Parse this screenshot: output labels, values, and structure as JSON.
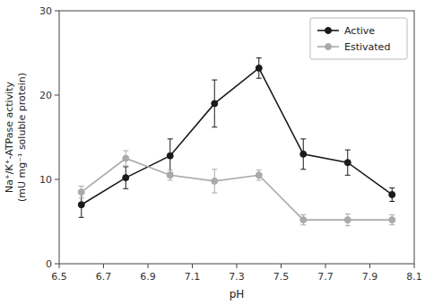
{
  "chart_data": {
    "type": "line",
    "xlabel": "pH",
    "ylabel": "Na⁺/K⁺-ATPase activity\n(mU mg⁻¹ soluble protein)",
    "x": [
      6.6,
      6.8,
      7.0,
      7.2,
      7.4,
      7.6,
      7.8,
      8.0
    ],
    "series": [
      {
        "name": "Active",
        "color": "#1a1a1a",
        "marker": "circle",
        "values": [
          7.0,
          10.2,
          12.8,
          19.0,
          23.2,
          13.0,
          12.0,
          8.2
        ],
        "errors": [
          1.5,
          1.3,
          2.0,
          2.8,
          1.2,
          1.8,
          1.5,
          0.8
        ]
      },
      {
        "name": "Estivated",
        "color": "#aaaaaa",
        "marker": "circle",
        "values": [
          8.5,
          12.5,
          10.5,
          9.8,
          10.5,
          5.2,
          5.2,
          5.2
        ],
        "errors": [
          0.7,
          0.9,
          0.6,
          1.4,
          0.6,
          0.6,
          0.7,
          0.6
        ]
      }
    ],
    "xlim": [
      6.5,
      8.1
    ],
    "ylim": [
      0,
      30
    ],
    "xticks": [
      6.5,
      6.7,
      6.9,
      7.1,
      7.3,
      7.5,
      7.7,
      7.9,
      8.1
    ],
    "yticks": [
      0,
      10,
      20,
      30
    ],
    "legend": "upper right",
    "grid": false
  }
}
